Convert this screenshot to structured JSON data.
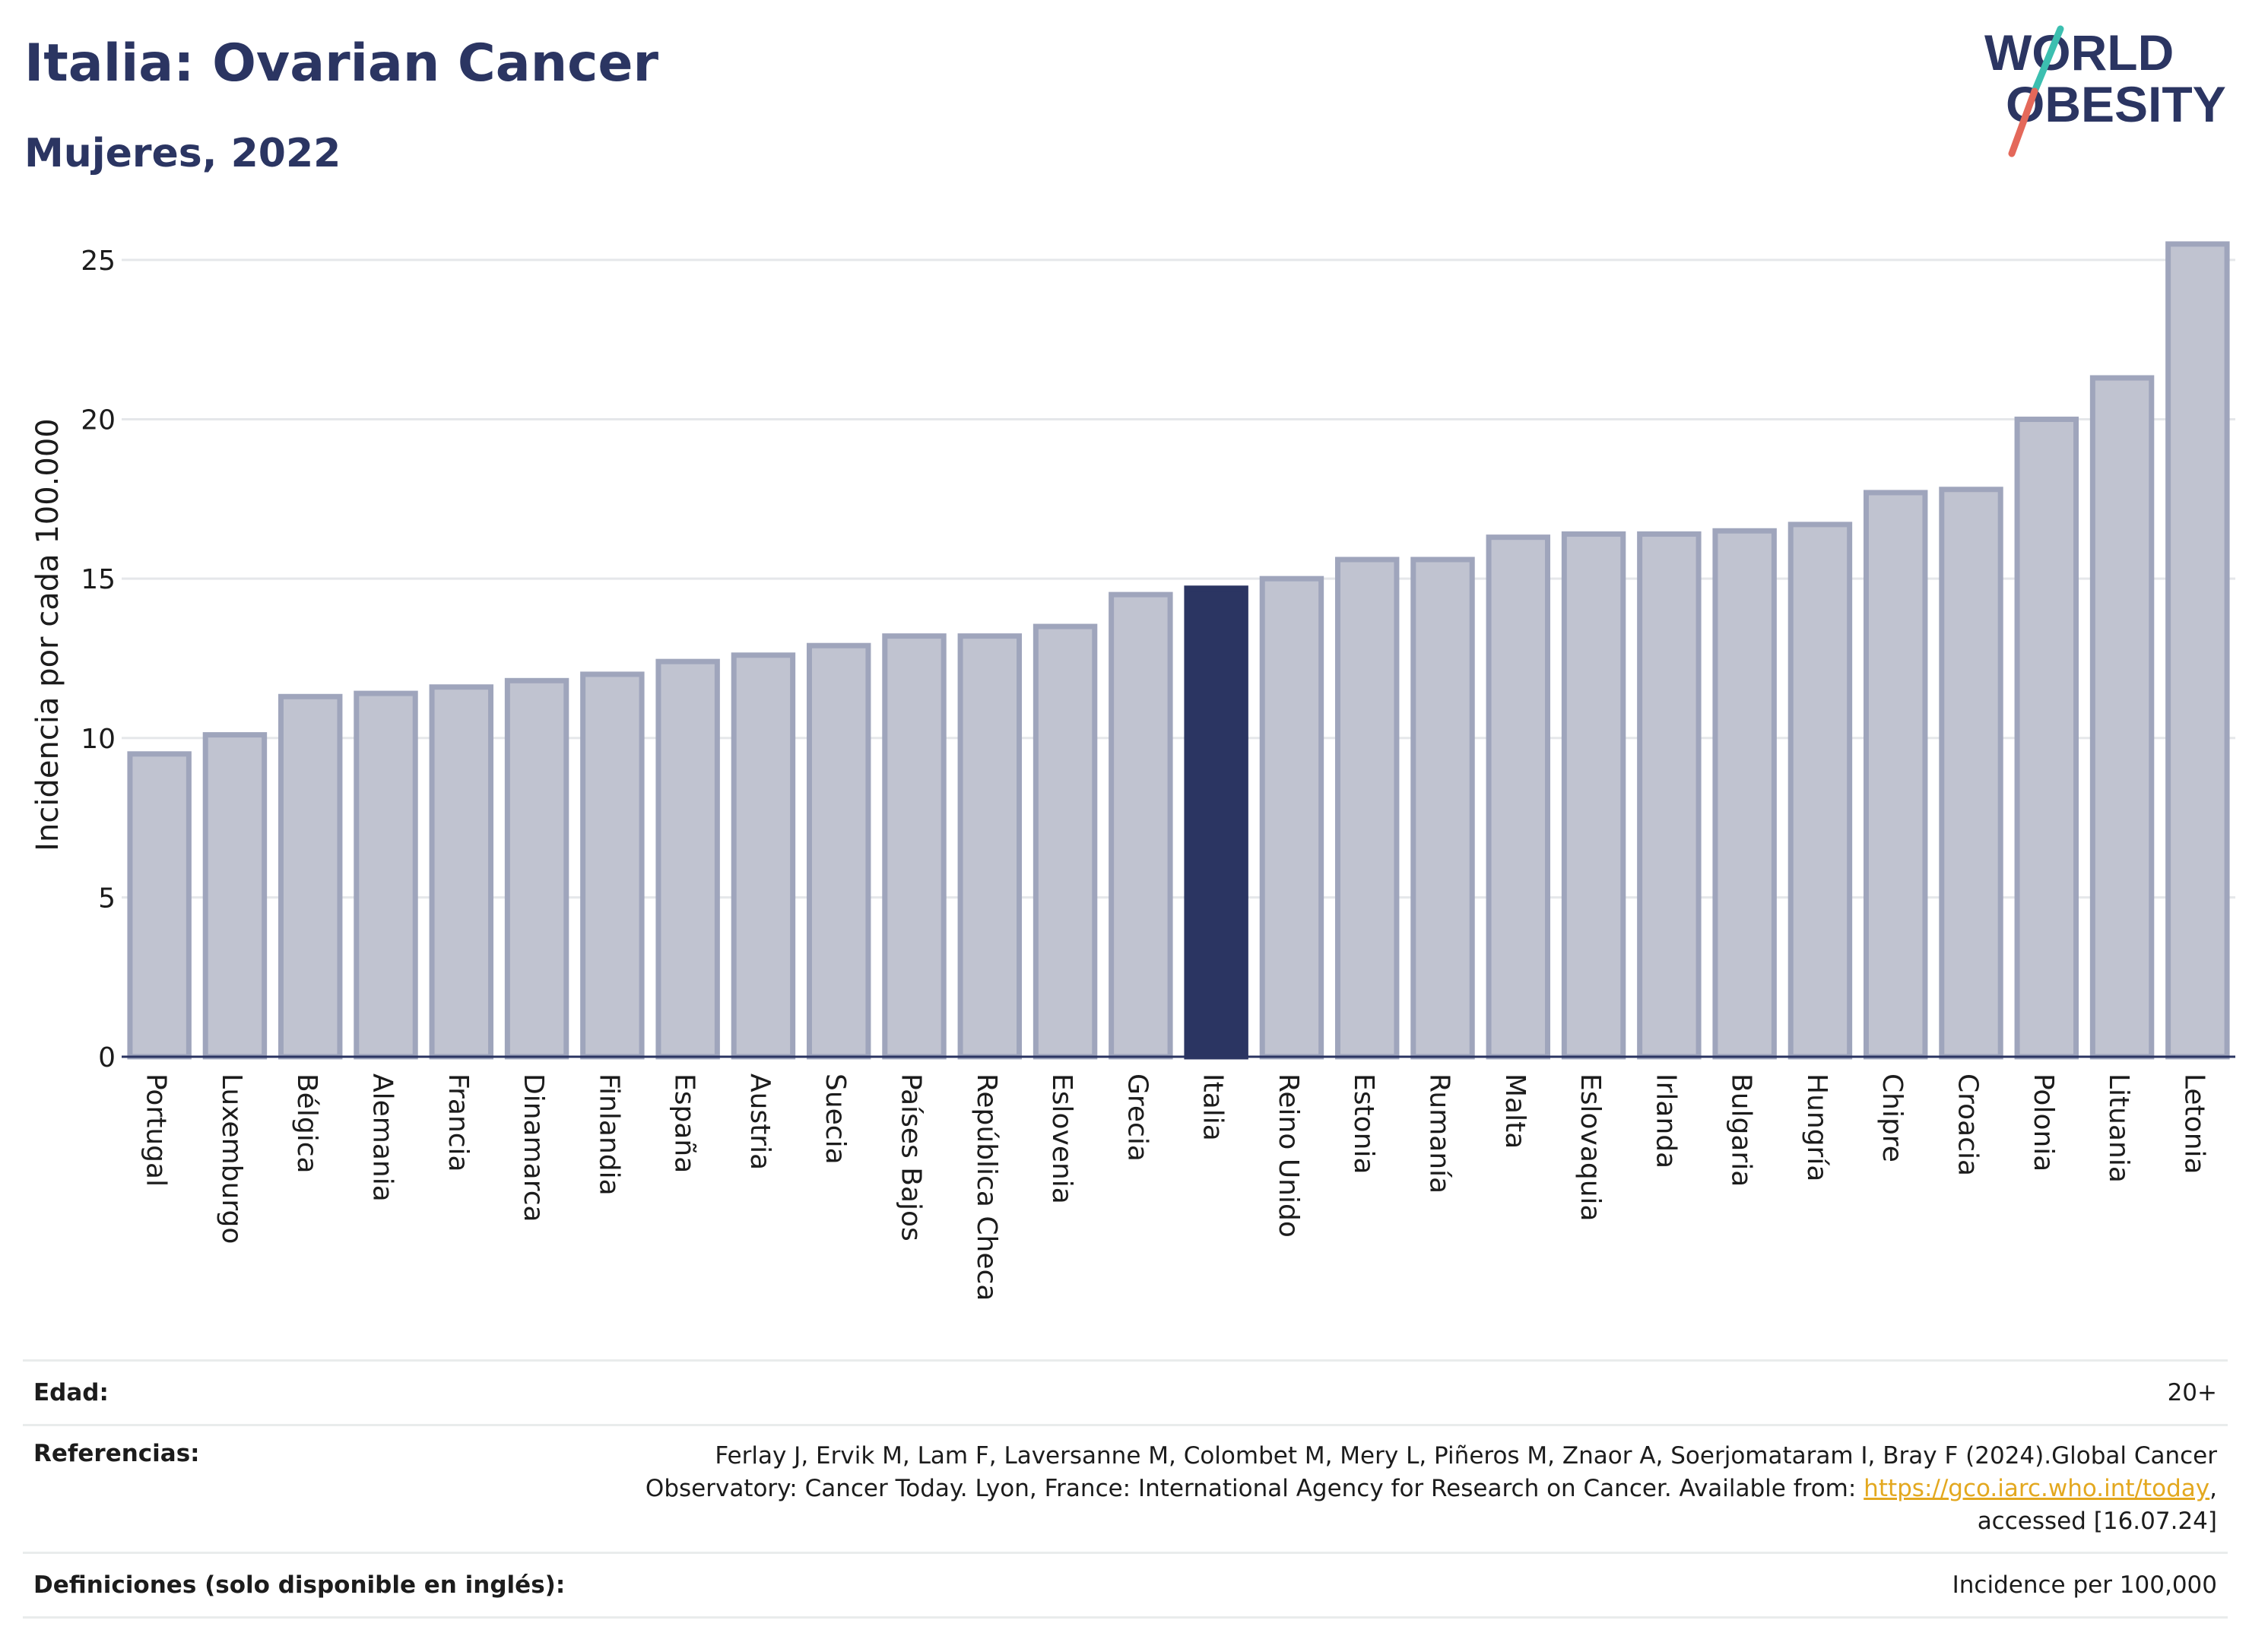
{
  "header": {
    "title": "Italia: Ovarian Cancer",
    "subtitle": "Mujeres, 2022"
  },
  "logo": {
    "line1": "WORLD",
    "line2": "OBESITY",
    "slash_colors": [
      "#3cbfb0",
      "#e4685a"
    ],
    "text_color": "#2b3562"
  },
  "chart_data": {
    "type": "bar",
    "ylabel": "Incidencia por cada 100.000",
    "ylim": [
      0,
      26
    ],
    "yticks": [
      0,
      5,
      10,
      15,
      20,
      25
    ],
    "grid": true,
    "highlight": "Italia",
    "colors": {
      "bar": "#c0c3d0",
      "bar_border": "#9fa5bc",
      "highlight": "#2b3562",
      "grid": "#e5e7ea"
    },
    "categories": [
      "Portugal",
      "Luxemburgo",
      "Bélgica",
      "Alemania",
      "Francia",
      "Dinamarca",
      "Finlandia",
      "España",
      "Austria",
      "Suecia",
      "Países Bajos",
      "República Checa",
      "Eslovenia",
      "Grecia",
      "Italia",
      "Reino Unido",
      "Estonia",
      "Rumanía",
      "Malta",
      "Eslovaquia",
      "Irlanda",
      "Bulgaria",
      "Hungría",
      "Chipre",
      "Croacia",
      "Polonia",
      "Lituania",
      "Letonia"
    ],
    "values": [
      9.5,
      10.1,
      11.3,
      11.4,
      11.6,
      11.8,
      12.0,
      12.4,
      12.6,
      12.9,
      13.2,
      13.2,
      13.5,
      14.5,
      14.7,
      15.0,
      15.6,
      15.6,
      16.3,
      16.4,
      16.4,
      16.5,
      16.7,
      17.7,
      17.8,
      20.0,
      21.3,
      25.5
    ]
  },
  "footer": {
    "age_label": "Edad:",
    "age_value": "20+",
    "ref_label": "Referencias:",
    "ref_line1": "Ferlay J, Ervik M, Lam F, Laversanne M, Colombet M, Mery L, Piñeros M, Znaor A, Soerjomataram I, Bray F (2024).Global Cancer",
    "ref_line2": "Observatory: Cancer Today. Lyon, France: International Agency for Research on Cancer. Available from: ",
    "ref_link": "https://gco.iarc.who.int/today",
    "ref_line2_end": ",",
    "ref_line3": "accessed [16.07.24]",
    "def_label": "Definiciones (solo disponible en inglés):",
    "def_value": "Incidence per 100,000"
  }
}
